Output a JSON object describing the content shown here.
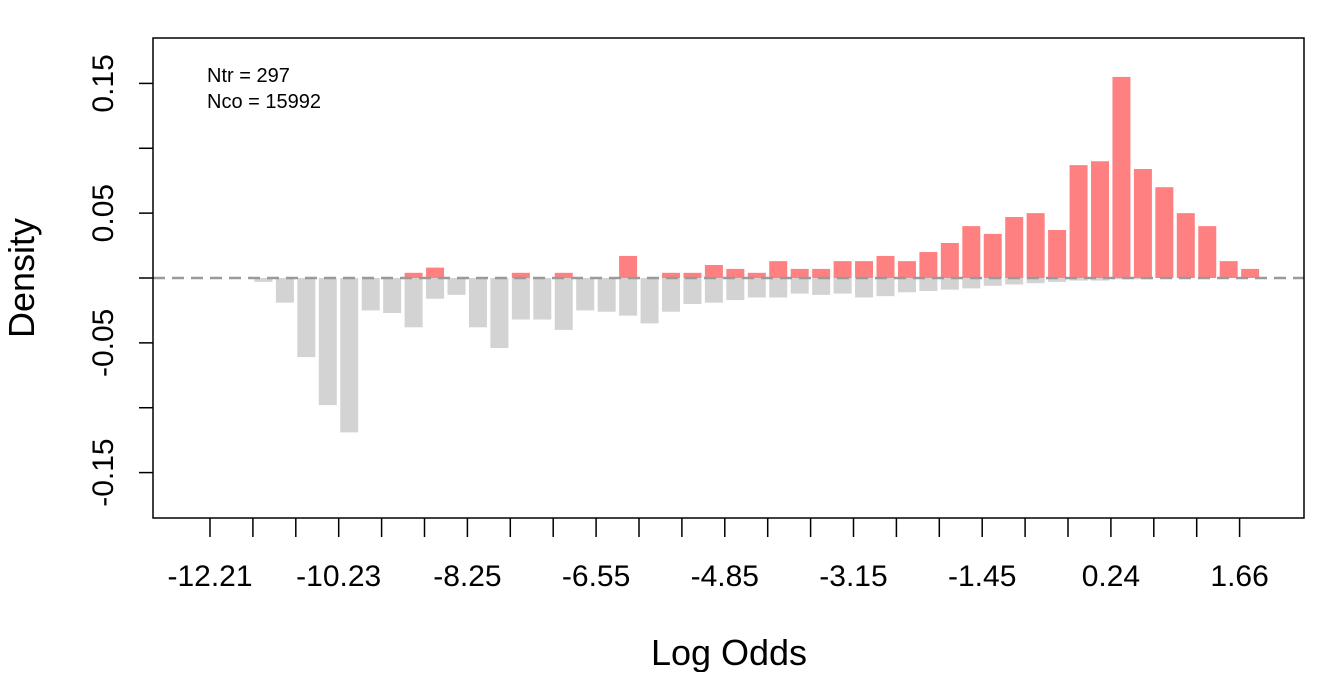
{
  "chart_data": {
    "type": "bar",
    "xlabel": "Log Odds",
    "ylabel": "Density",
    "ylim": [
      -0.185,
      0.185
    ],
    "grid": false,
    "annotations": [
      "Ntr =  297",
      "Nco =  15992"
    ],
    "bins": [
      "-12.21",
      "-11.88",
      "-11.55",
      "-11.22",
      "-10.89",
      "-10.56",
      "-10.23",
      "-9.90",
      "-9.57",
      "-9.24",
      "-8.91",
      "-8.58",
      "-8.25",
      "-7.94",
      "-7.63",
      "-7.32",
      "-7.01",
      "-6.70",
      "-6.55",
      "-6.30",
      "-6.00",
      "-5.70",
      "-5.40",
      "-5.10",
      "-4.85",
      "-4.60",
      "-4.30",
      "-4.00",
      "-3.70",
      "-3.40",
      "-3.15",
      "-2.90",
      "-2.60",
      "-2.30",
      "-2.00",
      "-1.70",
      "-1.45",
      "-1.20",
      "-0.90",
      "-0.60",
      "-0.30",
      "0.00",
      "0.24",
      "0.48",
      "0.72",
      "0.96",
      "1.20",
      "1.44",
      "1.66"
    ],
    "x_tick_labels": [
      "-12.21",
      "-10.23",
      "-8.25",
      "-6.55",
      "-4.85",
      "-3.15",
      "-1.45",
      "0.24",
      "1.66"
    ],
    "y_tick_labels": [
      "-0.15",
      "-0.05",
      "0.05",
      "0.15"
    ],
    "y_ticks": [
      -0.15,
      -0.1,
      -0.05,
      0.0,
      0.05,
      0.1,
      0.15
    ],
    "series": [
      {
        "name": "Ntr",
        "color": "#FF8080",
        "values": [
          0,
          0,
          0,
          0,
          0,
          0,
          0,
          0,
          0.004,
          0.008,
          0,
          0,
          0,
          0.004,
          0,
          0.004,
          0,
          0,
          0.017,
          0,
          0.004,
          0.004,
          0.01,
          0.007,
          0.004,
          0.013,
          0.007,
          0.007,
          0.013,
          0.013,
          0.017,
          0.013,
          0.02,
          0.027,
          0.04,
          0.034,
          0.047,
          0.05,
          0.037,
          0.087,
          0.09,
          0.155,
          0.084,
          0.07,
          0.05,
          0.04,
          0.013,
          0.007,
          0
        ]
      },
      {
        "name": "Nco",
        "color": "#D3D3D3",
        "values": [
          0,
          -0.003,
          -0.019,
          -0.061,
          -0.098,
          -0.119,
          -0.025,
          -0.027,
          -0.038,
          -0.016,
          -0.013,
          -0.038,
          -0.054,
          -0.032,
          -0.032,
          -0.04,
          -0.025,
          -0.026,
          -0.029,
          -0.035,
          -0.026,
          -0.02,
          -0.019,
          -0.017,
          -0.015,
          -0.015,
          -0.012,
          -0.013,
          -0.012,
          -0.015,
          -0.014,
          -0.011,
          -0.01,
          -0.009,
          -0.008,
          -0.006,
          -0.005,
          -0.004,
          -0.003,
          -0.002,
          -0.002,
          -0.001,
          -0.001,
          0,
          0,
          0,
          0,
          0,
          0
        ]
      }
    ]
  }
}
